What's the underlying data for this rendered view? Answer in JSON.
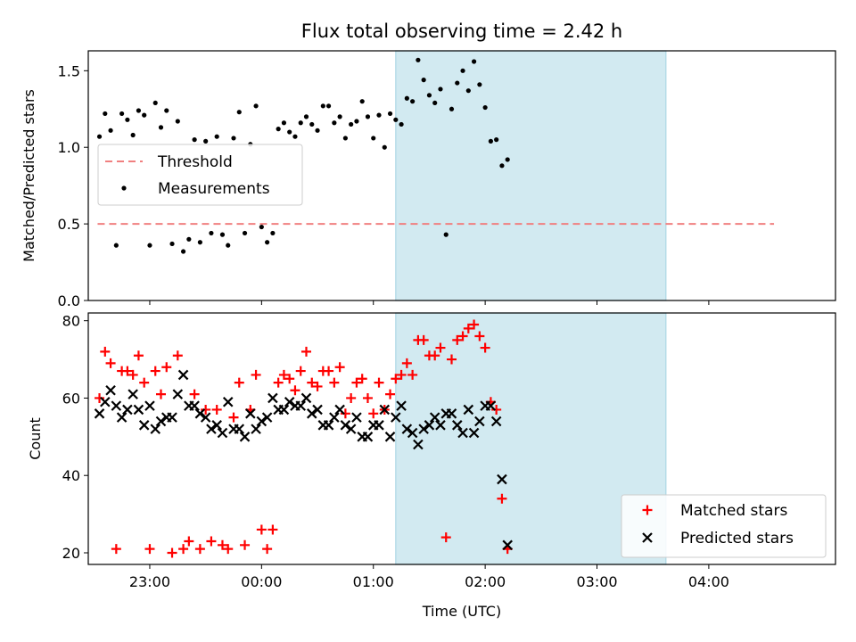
{
  "title": "Flux total observing time = 2.42 h",
  "colors": {
    "threshold": "#f08080",
    "measurement": "#000000",
    "matched": "#ff0000",
    "predicted": "#000000",
    "shade": "#add8e6"
  },
  "chart_data": [
    {
      "type": "scatter",
      "ylabel": "Matched/Predicted stars",
      "ylim": [
        0,
        1.63
      ],
      "yticks": [
        0.0,
        0.5,
        1.0,
        1.5
      ],
      "ytick_labels": [
        "0.0",
        "0.5",
        "1.0",
        "1.5"
      ],
      "xlim": [
        "22:27",
        "05:08"
      ],
      "shaded_interval": [
        "01:12",
        "03:37"
      ],
      "threshold": {
        "name": "Threshold",
        "value": 0.5,
        "x_range": [
          "22:32",
          "04:35"
        ],
        "style": "dashed"
      },
      "legend": {
        "placement": "center-left",
        "entries": [
          "Threshold",
          "Measurements"
        ]
      },
      "series": [
        {
          "name": "Measurements",
          "marker": "dot",
          "points": [
            [
              "22:33",
              1.07
            ],
            [
              "22:36",
              1.22
            ],
            [
              "22:39",
              1.11
            ],
            [
              "22:42",
              0.36
            ],
            [
              "22:45",
              1.22
            ],
            [
              "22:48",
              1.18
            ],
            [
              "22:51",
              1.08
            ],
            [
              "22:54",
              1.24
            ],
            [
              "22:57",
              1.21
            ],
            [
              "23:00",
              0.36
            ],
            [
              "23:03",
              1.29
            ],
            [
              "23:06",
              1.13
            ],
            [
              "23:09",
              1.24
            ],
            [
              "23:12",
              0.37
            ],
            [
              "23:15",
              1.17
            ],
            [
              "23:18",
              0.32
            ],
            [
              "23:21",
              0.4
            ],
            [
              "23:24",
              1.05
            ],
            [
              "23:27",
              0.38
            ],
            [
              "23:30",
              1.04
            ],
            [
              "23:33",
              0.44
            ],
            [
              "23:36",
              1.07
            ],
            [
              "23:39",
              0.43
            ],
            [
              "23:42",
              0.36
            ],
            [
              "23:45",
              1.06
            ],
            [
              "23:48",
              1.23
            ],
            [
              "23:51",
              0.44
            ],
            [
              "23:54",
              1.02
            ],
            [
              "23:57",
              1.27
            ],
            [
              "00:00",
              0.48
            ],
            [
              "00:03",
              0.38
            ],
            [
              "00:06",
              0.44
            ],
            [
              "00:09",
              1.12
            ],
            [
              "00:12",
              1.16
            ],
            [
              "00:15",
              1.1
            ],
            [
              "00:18",
              1.07
            ],
            [
              "00:21",
              1.16
            ],
            [
              "00:24",
              1.2
            ],
            [
              "00:27",
              1.15
            ],
            [
              "00:30",
              1.11
            ],
            [
              "00:33",
              1.27
            ],
            [
              "00:36",
              1.27
            ],
            [
              "00:39",
              1.16
            ],
            [
              "00:42",
              1.2
            ],
            [
              "00:45",
              1.06
            ],
            [
              "00:48",
              1.15
            ],
            [
              "00:51",
              1.17
            ],
            [
              "00:54",
              1.3
            ],
            [
              "00:57",
              1.2
            ],
            [
              "01:00",
              1.06
            ],
            [
              "01:03",
              1.21
            ],
            [
              "01:06",
              1.0
            ],
            [
              "01:09",
              1.22
            ],
            [
              "01:12",
              1.18
            ],
            [
              "01:15",
              1.15
            ],
            [
              "01:18",
              1.32
            ],
            [
              "01:21",
              1.3
            ],
            [
              "01:24",
              1.57
            ],
            [
              "01:27",
              1.44
            ],
            [
              "01:30",
              1.34
            ],
            [
              "01:33",
              1.29
            ],
            [
              "01:36",
              1.38
            ],
            [
              "01:39",
              0.43
            ],
            [
              "01:42",
              1.25
            ],
            [
              "01:45",
              1.42
            ],
            [
              "01:48",
              1.5
            ],
            [
              "01:51",
              1.37
            ],
            [
              "01:54",
              1.56
            ],
            [
              "01:57",
              1.41
            ],
            [
              "02:00",
              1.26
            ],
            [
              "02:03",
              1.04
            ],
            [
              "02:06",
              1.05
            ],
            [
              "02:09",
              0.88
            ],
            [
              "02:12",
              0.92
            ]
          ]
        }
      ]
    },
    {
      "type": "scatter",
      "ylabel": "Count",
      "xlabel": "Time (UTC)",
      "ylim": [
        17,
        82
      ],
      "yticks": [
        20,
        40,
        60,
        80
      ],
      "ytick_labels": [
        "20",
        "40",
        "60",
        "80"
      ],
      "xlim": [
        "22:27",
        "05:08"
      ],
      "xticks": [
        "23:00",
        "00:00",
        "01:00",
        "02:00",
        "03:00",
        "04:00"
      ],
      "shaded_interval": [
        "01:12",
        "03:37"
      ],
      "legend": {
        "placement": "bottom-right",
        "entries": [
          "Matched stars",
          "Predicted stars"
        ]
      },
      "series": [
        {
          "name": "Matched stars",
          "marker": "plus",
          "points": [
            [
              60,
              72,
              69,
              21,
              67,
              67,
              66,
              71,
              64,
              21,
              67,
              61,
              68,
              20,
              71,
              21,
              23,
              61,
              21,
              57,
              23,
              57,
              22,
              21,
              55,
              64,
              22,
              57,
              66,
              26,
              21,
              26,
              64,
              66,
              65,
              62,
              67,
              72,
              64,
              63,
              67,
              67,
              64,
              68,
              56,
              60,
              64,
              65,
              60,
              56,
              64,
              57,
              61,
              65,
              66,
              69,
              66,
              75,
              75,
              71,
              71,
              73,
              24,
              70,
              75,
              76,
              78,
              79,
              76,
              73,
              59,
              57,
              34,
              21
            ]
          ]
        },
        {
          "name": "Predicted stars",
          "marker": "x",
          "points": [
            [
              56,
              59,
              62,
              58,
              55,
              57,
              61,
              57,
              53,
              58,
              52,
              54,
              55,
              55,
              61,
              66,
              58,
              58,
              56,
              55,
              52,
              53,
              51,
              59,
              52,
              52,
              50,
              56,
              52,
              54,
              55,
              60,
              57,
              57,
              59,
              58,
              58,
              60,
              56,
              57,
              53,
              53,
              55,
              57,
              53,
              52,
              55,
              50,
              50,
              53,
              53,
              57,
              50,
              55,
              58,
              52,
              51,
              48,
              52,
              53,
              55,
              53,
              56,
              56,
              53,
              51,
              57,
              51,
              54,
              58,
              58,
              54,
              39,
              22
            ]
          ]
        }
      ]
    }
  ]
}
